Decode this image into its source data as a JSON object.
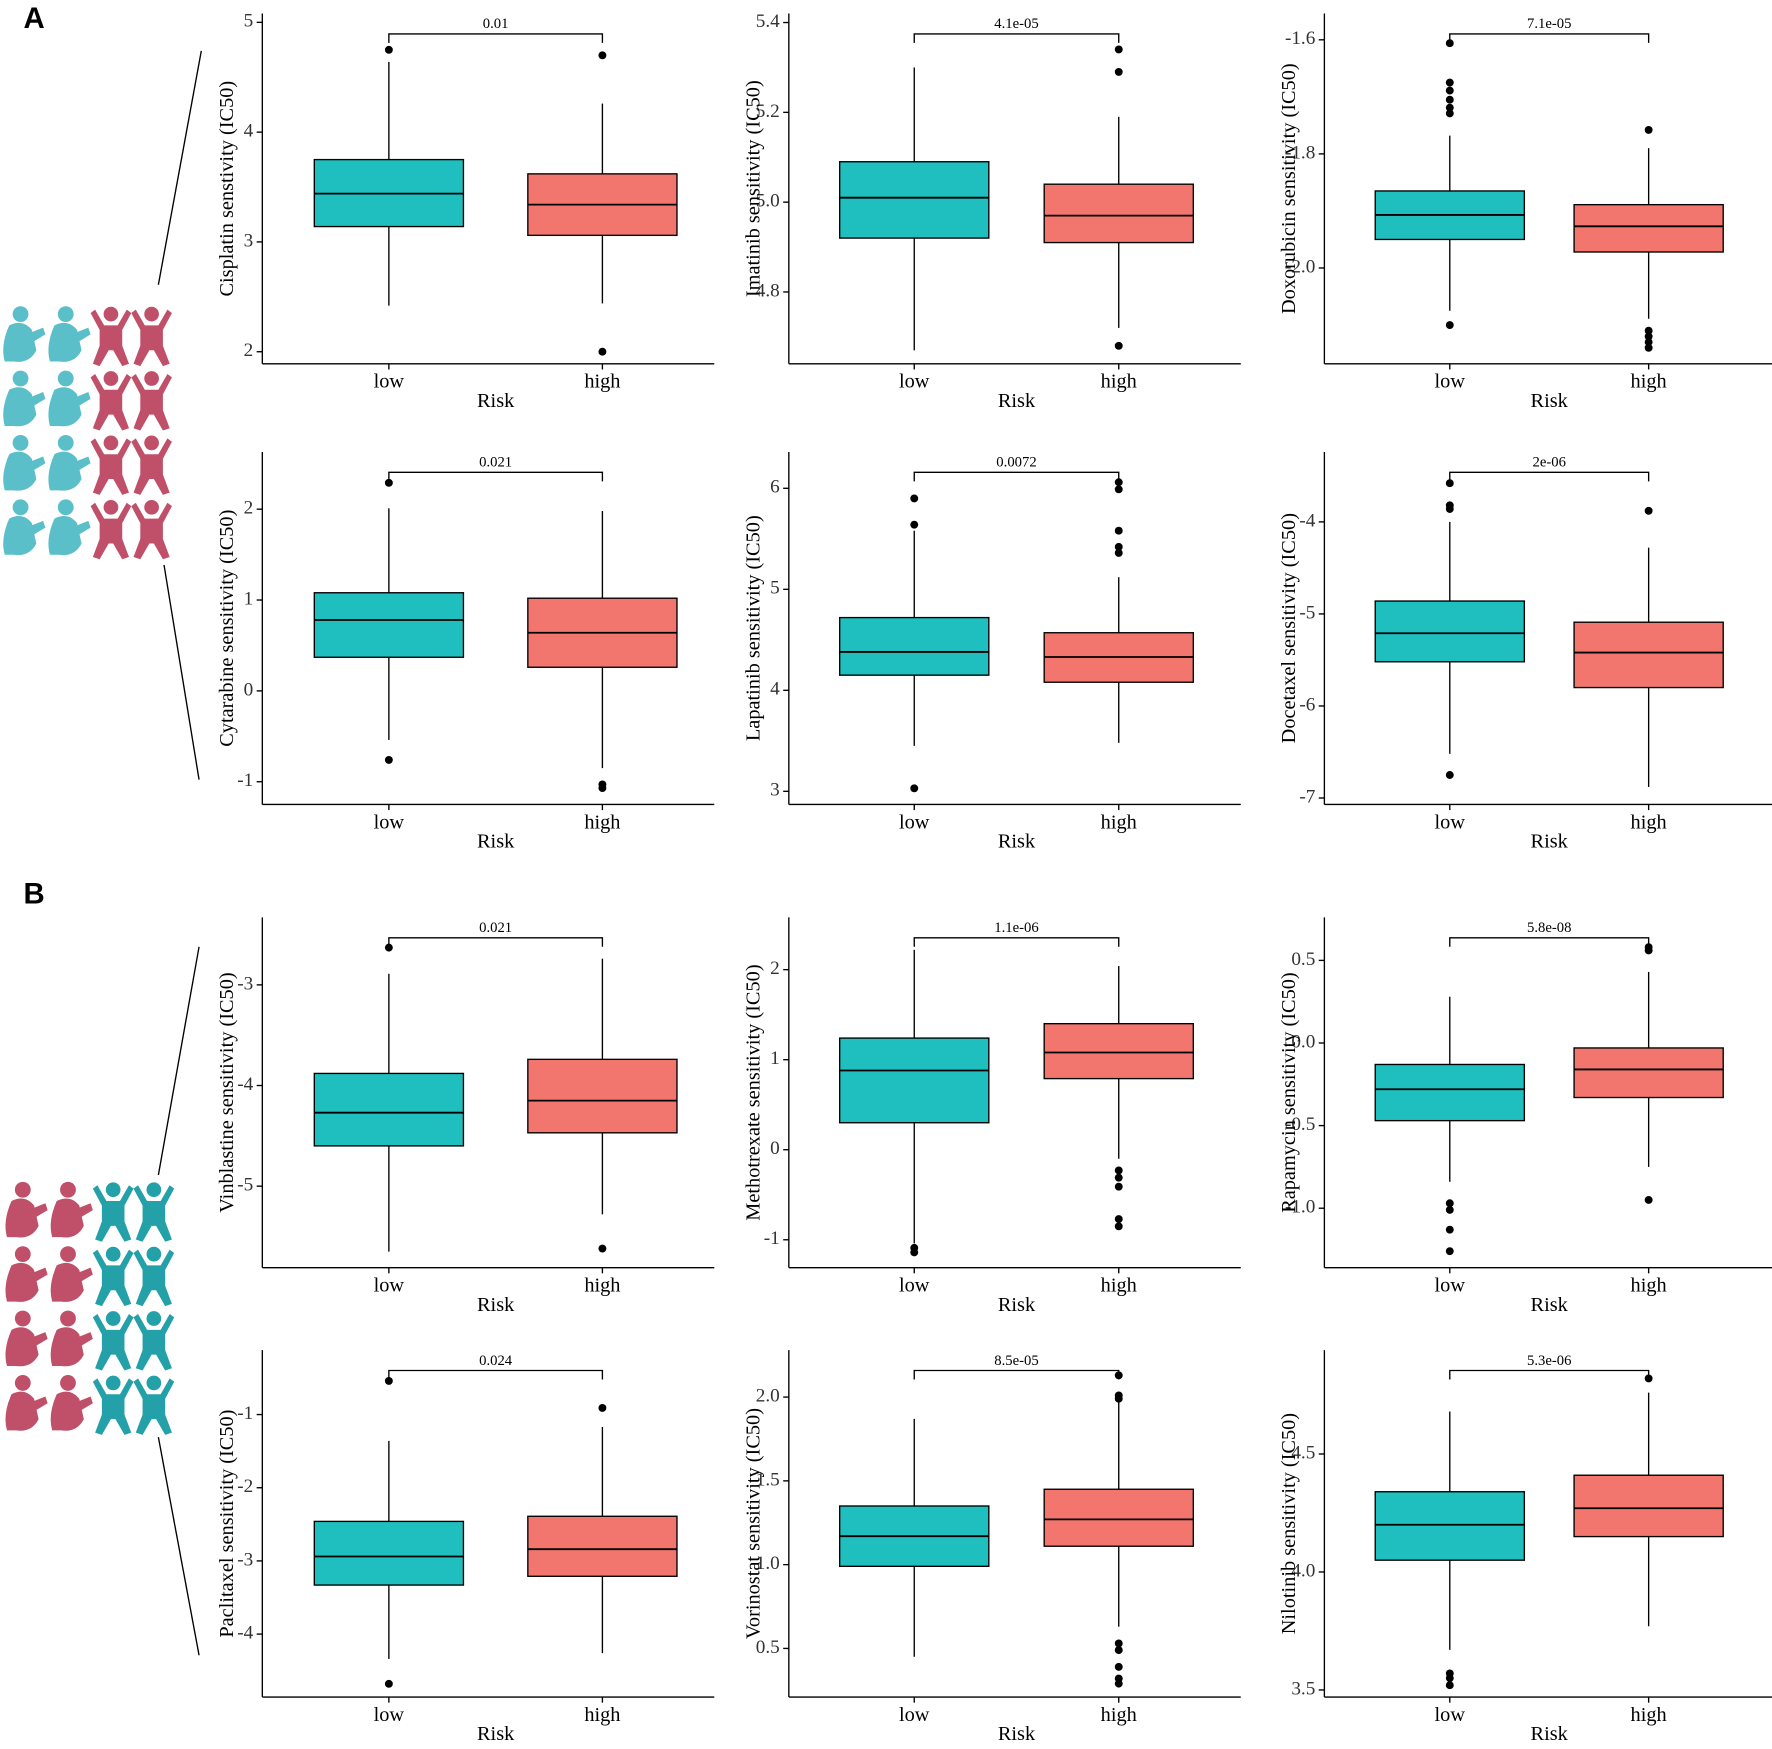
{
  "panel_labels": [
    "A",
    "B"
  ],
  "chart_data": [
    {
      "type": "box",
      "ylabel": "Cisplatin senstivity (IC50)",
      "xlabel": "Risk",
      "categories": [
        "low",
        "high"
      ],
      "colors": [
        "#20bfbf",
        "#f3766e"
      ],
      "annotation": "0.01",
      "ylim": [
        1.89,
        5.08
      ],
      "yticks": [
        2,
        3,
        4,
        5
      ],
      "boxes": [
        {
          "whislo": 2.42,
          "q1": 3.14,
          "med": 3.44,
          "q3": 3.75,
          "whishi": 4.64,
          "outliers": [
            4.75
          ]
        },
        {
          "whislo": 2.44,
          "q1": 3.06,
          "med": 3.34,
          "q3": 3.62,
          "whishi": 4.26,
          "outliers": [
            4.7,
            2.0
          ]
        }
      ]
    },
    {
      "type": "box",
      "ylabel": "Imatinib sensitivity (IC50)",
      "xlabel": "Risk",
      "categories": [
        "low",
        "high"
      ],
      "colors": [
        "#20bfbf",
        "#f3766e"
      ],
      "annotation": "4.1e-05",
      "ylim": [
        4.64,
        5.42
      ],
      "yticks": [
        4.8,
        {
          "value": 5.0,
          "label": "5.0"
        },
        5.2,
        5.4
      ],
      "boxes": [
        {
          "whislo": 4.67,
          "q1": 4.92,
          "med": 5.01,
          "q3": 5.09,
          "whishi": 5.3,
          "outliers": []
        },
        {
          "whislo": 4.72,
          "q1": 4.91,
          "med": 4.97,
          "q3": 5.04,
          "whishi": 5.19,
          "outliers": [
            5.34,
            5.29,
            4.68
          ]
        }
      ]
    },
    {
      "type": "box",
      "ylabel": "Doxorubicin sensitivity (IC50)",
      "xlabel": "Risk",
      "categories": [
        "low",
        "high"
      ],
      "colors": [
        "#20bfbf",
        "#f3766e"
      ],
      "annotation": "7.1e-05",
      "ylim": [
        -2.168,
        -1.554
      ],
      "yticks": [
        -1.6,
        -1.8,
        {
          "value": -2.0,
          "label": "-2.0"
        }
      ],
      "boxes": [
        {
          "whislo": -2.075,
          "q1": -1.95,
          "med": -1.907,
          "q3": -1.865,
          "whishi": -1.768,
          "outliers": [
            -1.606,
            -1.675,
            -1.689,
            -1.705,
            -1.719,
            -1.729,
            -2.1
          ]
        },
        {
          "whislo": -2.089,
          "q1": -1.972,
          "med": -1.927,
          "q3": -1.889,
          "whishi": -1.79,
          "outliers": [
            -1.758,
            -2.11,
            -2.12,
            -2.13,
            -2.14
          ]
        }
      ]
    },
    {
      "type": "box",
      "ylabel": "Cytarabine sensitivity (IC50)",
      "xlabel": "Risk",
      "categories": [
        "low",
        "high"
      ],
      "colors": [
        "#20bfbf",
        "#f3766e"
      ],
      "annotation": "0.021",
      "ylim": [
        -1.25,
        2.63
      ],
      "yticks": [
        2,
        1,
        0,
        -1
      ],
      "boxes": [
        {
          "whislo": -0.54,
          "q1": 0.37,
          "med": 0.78,
          "q3": 1.08,
          "whishi": 2.01,
          "outliers": [
            2.29,
            -0.76
          ]
        },
        {
          "whislo": -0.85,
          "q1": 0.26,
          "med": 0.64,
          "q3": 1.02,
          "whishi": 1.98,
          "outliers": [
            -1.03,
            -1.07
          ]
        }
      ]
    },
    {
      "type": "box",
      "ylabel": "Lapatinib sensitivity (IC50)",
      "xlabel": "Risk",
      "categories": [
        "low",
        "high"
      ],
      "colors": [
        "#20bfbf",
        "#f3766e"
      ],
      "annotation": "0.0072",
      "ylim": [
        2.87,
        6.36
      ],
      "yticks": [
        3,
        4,
        5,
        6
      ],
      "boxes": [
        {
          "whislo": 3.45,
          "q1": 4.15,
          "med": 4.38,
          "q3": 4.72,
          "whishi": 5.58,
          "outliers": [
            5.9,
            5.64,
            3.03
          ]
        },
        {
          "whislo": 3.48,
          "q1": 4.08,
          "med": 4.33,
          "q3": 4.57,
          "whishi": 5.12,
          "outliers": [
            6.06,
            5.99,
            5.58,
            5.42,
            5.36
          ]
        }
      ]
    },
    {
      "type": "box",
      "ylabel": "Docetaxel sensitivity (IC50)",
      "xlabel": "Risk",
      "categories": [
        "low",
        "high"
      ],
      "colors": [
        "#20bfbf",
        "#f3766e"
      ],
      "annotation": "2e-06",
      "ylim": [
        -7.07,
        -3.24
      ],
      "yticks": [
        -4,
        -5,
        -6,
        -7
      ],
      "boxes": [
        {
          "whislo": -6.52,
          "q1": -5.52,
          "med": -5.21,
          "q3": -4.86,
          "whishi": -4.0,
          "outliers": [
            -3.58,
            -3.82,
            -3.86,
            -6.75
          ]
        },
        {
          "whislo": -6.88,
          "q1": -5.8,
          "med": -5.42,
          "q3": -5.09,
          "whishi": -4.28,
          "outliers": [
            -3.88
          ]
        }
      ]
    },
    {
      "type": "box",
      "ylabel": "Vinblastine sensitivity (IC50)",
      "xlabel": "Risk",
      "categories": [
        "low",
        "high"
      ],
      "colors": [
        "#20bfbf",
        "#f3766e"
      ],
      "annotation": "0.021",
      "ylim": [
        -5.81,
        -2.33
      ],
      "yticks": [
        -3,
        -4,
        -5
      ],
      "boxes": [
        {
          "whislo": -5.65,
          "q1": -4.6,
          "med": -4.27,
          "q3": -3.88,
          "whishi": -2.89,
          "outliers": [
            -2.63
          ]
        },
        {
          "whislo": -5.28,
          "q1": -4.47,
          "med": -4.15,
          "q3": -3.74,
          "whishi": -2.74,
          "outliers": [
            -5.62
          ]
        }
      ]
    },
    {
      "type": "box",
      "ylabel": "Methotrexate sensitivity (IC50)",
      "xlabel": "Risk",
      "categories": [
        "low",
        "high"
      ],
      "colors": [
        "#20bfbf",
        "#f3766e"
      ],
      "annotation": "1.1e-06",
      "ylim": [
        -1.31,
        2.58
      ],
      "yticks": [
        2,
        1,
        0,
        -1
      ],
      "boxes": [
        {
          "whislo": -1.04,
          "q1": 0.3,
          "med": 0.88,
          "q3": 1.24,
          "whishi": 2.22,
          "outliers": [
            -1.09,
            -1.14
          ]
        },
        {
          "whislo": -0.1,
          "q1": 0.79,
          "med": 1.08,
          "q3": 1.4,
          "whishi": 2.04,
          "outliers": [
            -0.23,
            -0.31,
            -0.41,
            -0.77,
            -0.85
          ]
        }
      ]
    },
    {
      "type": "box",
      "ylabel": "Rapamycin sensitivity (IC50)",
      "xlabel": "Risk",
      "categories": [
        "low",
        "high"
      ],
      "colors": [
        "#20bfbf",
        "#f3766e"
      ],
      "annotation": "5.8e-08",
      "ylim": [
        -1.36,
        0.76
      ],
      "yticks": [
        0.5,
        {
          "value": 0,
          "label": "0.0"
        },
        -0.5,
        {
          "value": -1.0,
          "label": "-1.0"
        }
      ],
      "boxes": [
        {
          "whislo": -0.84,
          "q1": -0.47,
          "med": -0.28,
          "q3": -0.13,
          "whishi": 0.28,
          "outliers": [
            -0.97,
            -1.01,
            -1.13,
            -1.26
          ]
        },
        {
          "whislo": -0.75,
          "q1": -0.33,
          "med": -0.16,
          "q3": -0.03,
          "whishi": 0.43,
          "outliers": [
            0.58,
            0.56,
            -0.95
          ]
        }
      ]
    },
    {
      "type": "box",
      "ylabel": "Paclitaxel sensitivity (IC50)",
      "xlabel": "Risk",
      "categories": [
        "low",
        "high"
      ],
      "colors": [
        "#20bfbf",
        "#f3766e"
      ],
      "annotation": "0.024",
      "ylim": [
        -4.86,
        -0.12
      ],
      "yticks": [
        -1,
        -2,
        -3,
        -4
      ],
      "boxes": [
        {
          "whislo": -4.34,
          "q1": -3.33,
          "med": -2.94,
          "q3": -2.46,
          "whishi": -1.36,
          "outliers": [
            -0.54,
            -4.68
          ]
        },
        {
          "whislo": -4.26,
          "q1": -3.21,
          "med": -2.84,
          "q3": -2.39,
          "whishi": -1.17,
          "outliers": [
            -0.91
          ]
        }
      ]
    },
    {
      "type": "box",
      "ylabel": "Vorinostat sensitivity (IC50)",
      "xlabel": "Risk",
      "categories": [
        "low",
        "high"
      ],
      "colors": [
        "#20bfbf",
        "#f3766e"
      ],
      "annotation": "8.5e-05",
      "ylim": [
        0.21,
        2.28
      ],
      "yticks": [
        {
          "value": 2.0,
          "label": "2.0"
        },
        1.5,
        {
          "value": 1.0,
          "label": "1.0"
        },
        0.5
      ],
      "boxes": [
        {
          "whislo": 0.45,
          "q1": 0.99,
          "med": 1.17,
          "q3": 1.35,
          "whishi": 1.87,
          "outliers": []
        },
        {
          "whislo": 0.63,
          "q1": 1.11,
          "med": 1.27,
          "q3": 1.45,
          "whishi": 1.97,
          "outliers": [
            2.13,
            2.01,
            1.99,
            0.53,
            0.49,
            0.39,
            0.32,
            0.29
          ]
        }
      ]
    },
    {
      "type": "box",
      "ylabel": "Nilotinib sensitivity (IC50)",
      "xlabel": "Risk",
      "categories": [
        "low",
        "high"
      ],
      "colors": [
        "#20bfbf",
        "#f3766e"
      ],
      "annotation": "5.3e-06",
      "ylim": [
        3.47,
        4.94
      ],
      "yticks": [
        4.5,
        {
          "value": 4.0,
          "label": "4.0"
        },
        3.5
      ],
      "boxes": [
        {
          "whislo": 3.67,
          "q1": 4.05,
          "med": 4.2,
          "q3": 4.34,
          "whishi": 4.68,
          "outliers": [
            3.57,
            3.55,
            3.52
          ]
        },
        {
          "whislo": 3.77,
          "q1": 4.15,
          "med": 4.27,
          "q3": 4.41,
          "whishi": 4.76,
          "outliers": [
            4.82
          ]
        }
      ]
    }
  ]
}
